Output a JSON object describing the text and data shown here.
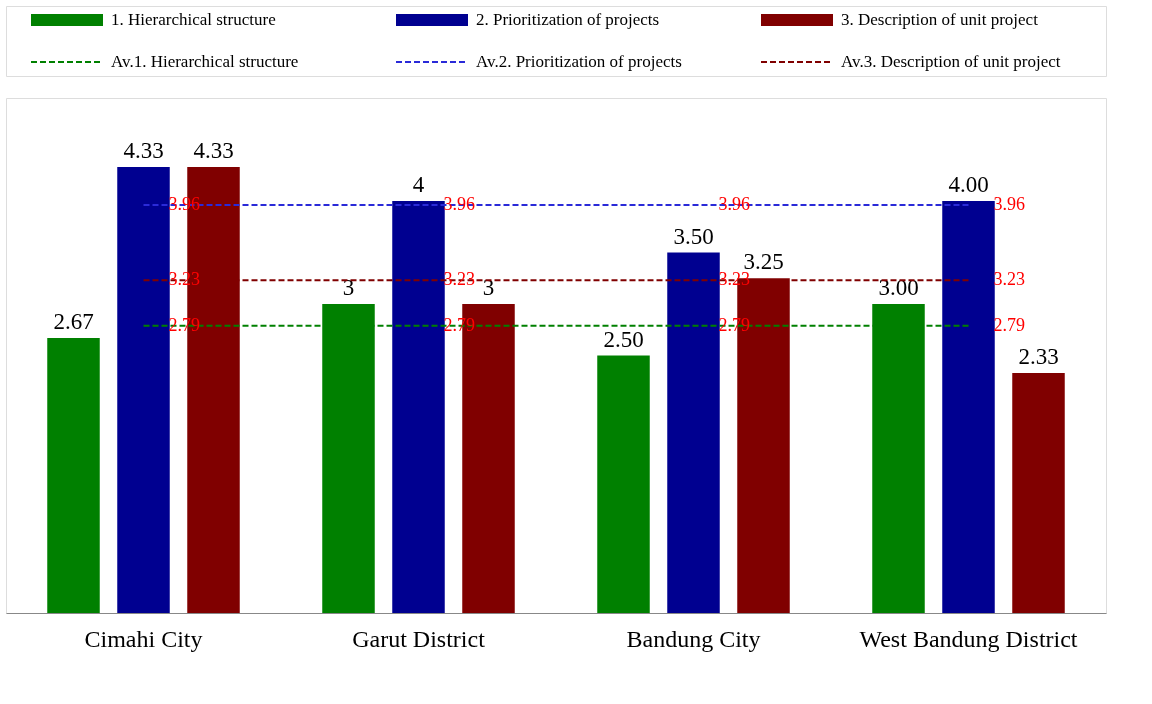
{
  "chart_data": {
    "type": "bar",
    "categories": [
      "Cimahi City",
      "Garut District",
      "Bandung City",
      "West Bandung District"
    ],
    "ylim": [
      0,
      5
    ],
    "tick_labels": "x",
    "legend": "top",
    "series": [
      {
        "name": "1. Hierarchical structure",
        "color": "#008000",
        "values": [
          2.67,
          3,
          2.5,
          3
        ],
        "value_labels": [
          "2.67",
          "3",
          "2.50",
          "3.00"
        ]
      },
      {
        "name": "2. Prioritization of projects",
        "color": "#000090",
        "values": [
          4.33,
          4,
          3.5,
          4
        ],
        "value_labels": [
          "4.33",
          "4",
          "3.50",
          "4.00"
        ]
      },
      {
        "name": "3. Description of unit project",
        "color": "#800000",
        "values": [
          4.33,
          3,
          3.25,
          2.33
        ],
        "value_labels": [
          "4.33",
          "3",
          "3.25",
          "2.33"
        ]
      },
      {
        "name": "Av.1. Hierarchical structure",
        "type": "line",
        "line_style": "dashed",
        "color": "#008000",
        "values": [
          2.79,
          2.79,
          2.79,
          2.79
        ],
        "value_labels": [
          "2.79",
          "2.79",
          "2.79",
          "2.79"
        ]
      },
      {
        "name": "Av.2. Prioritization of projects",
        "type": "line",
        "line_style": "dashed",
        "color": "#2a2ad8",
        "values": [
          3.96,
          3.96,
          3.96,
          3.96
        ],
        "value_labels": [
          "3.96",
          "3.96",
          "3.96",
          "3.96"
        ]
      },
      {
        "name": "Av.3. Description of unit project",
        "type": "line",
        "line_style": "dashed",
        "color": "#800000",
        "values": [
          3.23,
          3.23,
          3.23,
          3.23
        ],
        "value_labels": [
          "3.23",
          "3.23",
          "3.23",
          "3.23"
        ]
      }
    ]
  }
}
